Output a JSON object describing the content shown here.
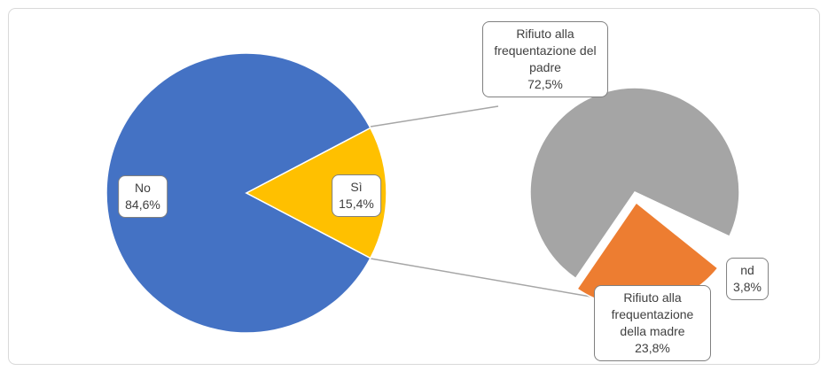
{
  "chart_data": {
    "type": "pie",
    "categories": [
      "No",
      "Sì"
    ],
    "values": [
      84.6,
      15.4
    ],
    "value_labels": [
      "84,6%",
      "15,4%"
    ],
    "colors": [
      "#4472c4",
      "#ffc000"
    ],
    "secondary": {
      "type": "pie",
      "categories": [
        "Rifiuto alla frequentazione del padre",
        "nd",
        "Rifiuto alla frequentazione della madre"
      ],
      "values": [
        72.5,
        3.8,
        23.8
      ],
      "value_labels": [
        "72,5%",
        "3,8%",
        "23,8%"
      ],
      "colors": [
        "#a5a5a5",
        "#ffffff",
        "#ed7d31"
      ]
    }
  }
}
